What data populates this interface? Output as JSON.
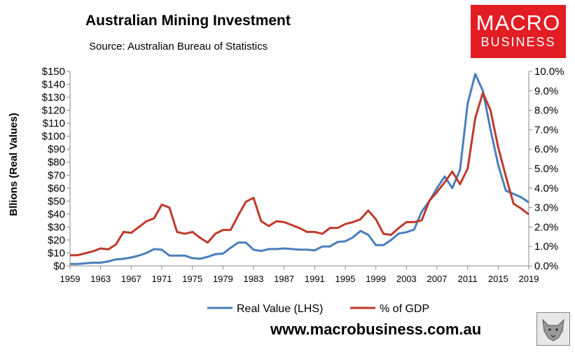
{
  "header": {
    "title": "Australian Mining Investment",
    "subtitle": "Source: Australian Bureau of Statistics"
  },
  "logo": {
    "line1": "MACRO",
    "line2": "BUSINESS",
    "color": "#e21d24"
  },
  "footer": {
    "website": "www.macrobusiness.com.au"
  },
  "chart_data": {
    "type": "line",
    "ylabel": "Bllions (Real Values)",
    "x": [
      1959,
      1960,
      1961,
      1962,
      1963,
      1964,
      1965,
      1966,
      1967,
      1968,
      1969,
      1970,
      1971,
      1972,
      1973,
      1974,
      1975,
      1976,
      1977,
      1978,
      1979,
      1980,
      1981,
      1982,
      1983,
      1984,
      1985,
      1986,
      1987,
      1988,
      1989,
      1990,
      1991,
      1992,
      1993,
      1994,
      1995,
      1996,
      1997,
      1998,
      1999,
      2000,
      2001,
      2002,
      2003,
      2004,
      2005,
      2006,
      2007,
      2008,
      2009,
      2010,
      2011,
      2012,
      2013,
      2014,
      2015,
      2016,
      2017,
      2018,
      2019
    ],
    "x_ticks": [
      1959,
      1963,
      1967,
      1971,
      1975,
      1979,
      1983,
      1987,
      1991,
      1995,
      1999,
      2003,
      2007,
      2011,
      2015,
      2019
    ],
    "y_left": {
      "ticks": [
        "$0",
        "$10",
        "$20",
        "$30",
        "$40",
        "$50",
        "$60",
        "$70",
        "$80",
        "$90",
        "$100",
        "$110",
        "$120",
        "$130",
        "$140",
        "$150"
      ],
      "range": [
        0,
        150
      ]
    },
    "y_right": {
      "ticks": [
        "0.0%",
        "1.0%",
        "2.0%",
        "3.0%",
        "4.0%",
        "5.0%",
        "6.0%",
        "7.0%",
        "8.0%",
        "9.0%",
        "10.0%"
      ],
      "range": [
        0,
        10
      ]
    },
    "grid": false,
    "legend_position": "bottom",
    "series": [
      {
        "name": "Real Value (LHS)",
        "axis": "left",
        "color": "#4a7ebb",
        "values": [
          1.5,
          1.5,
          2,
          2.5,
          2.5,
          3.5,
          5,
          5.5,
          6.5,
          8,
          10,
          13,
          12.5,
          8,
          8,
          8,
          6,
          5.5,
          7,
          9,
          9.5,
          14,
          18,
          18,
          12.5,
          11.5,
          13,
          13,
          13.5,
          13,
          12.5,
          12.5,
          12,
          15,
          15,
          18.5,
          19,
          22,
          27,
          24,
          16,
          16,
          20,
          25,
          26,
          28,
          42,
          50,
          60,
          69,
          60,
          74,
          125,
          148,
          135,
          105,
          78,
          58,
          55.5,
          53,
          49
        ]
      },
      {
        "name": "% of GDP",
        "axis": "right",
        "color": "#c0392b",
        "values": [
          0.55,
          0.55,
          0.65,
          0.75,
          0.9,
          0.85,
          1.1,
          1.75,
          1.7,
          2,
          2.3,
          2.45,
          3.15,
          3,
          1.75,
          1.65,
          1.75,
          1.45,
          1.2,
          1.65,
          1.85,
          1.85,
          2.6,
          3.3,
          3.5,
          2.3,
          2.05,
          2.3,
          2.25,
          2.1,
          1.95,
          1.75,
          1.75,
          1.65,
          1.95,
          1.95,
          2.15,
          2.25,
          2.4,
          2.85,
          2.4,
          1.65,
          1.6,
          1.95,
          2.25,
          2.25,
          2.35,
          3.35,
          3.8,
          4.3,
          4.85,
          4.2,
          5.0,
          7.6,
          8.9,
          8.0,
          6.1,
          4.6,
          3.2,
          2.95,
          2.65
        ]
      }
    ]
  }
}
